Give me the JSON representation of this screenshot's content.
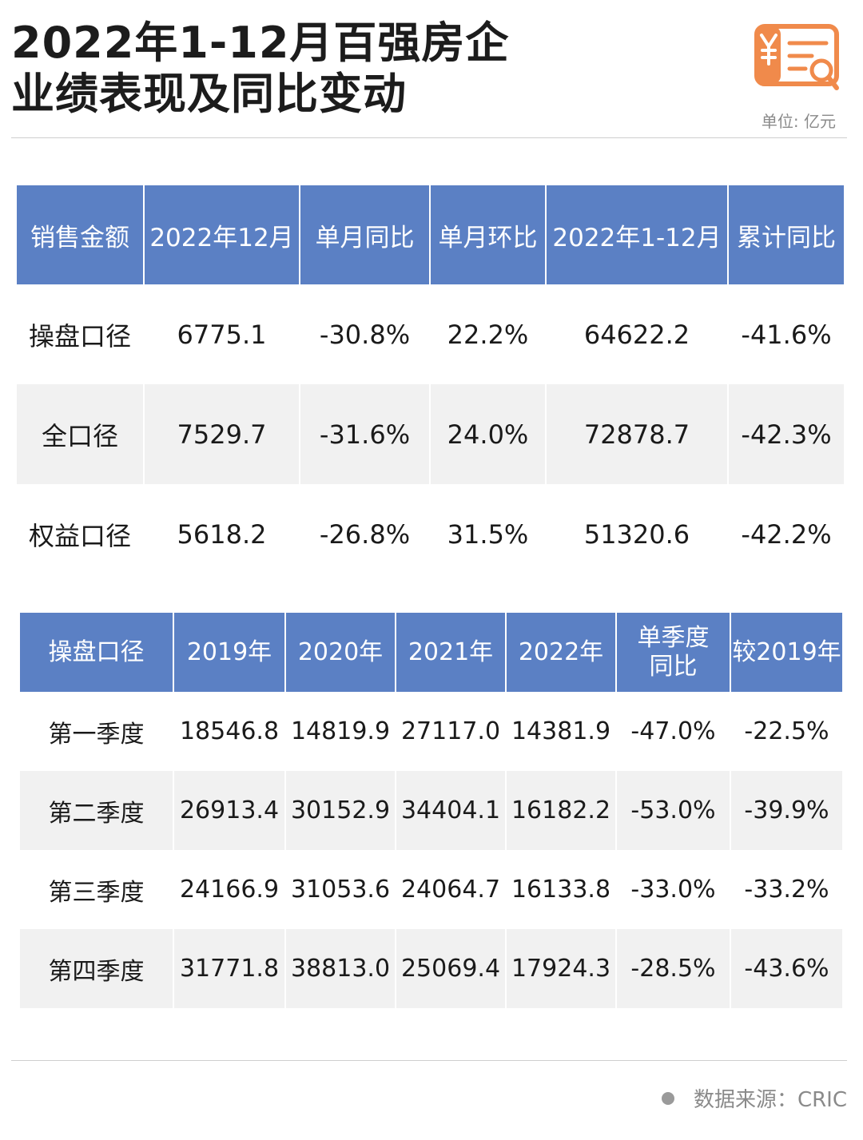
{
  "header": {
    "title_line1": "2022年1-12月百强房企",
    "title_line2": "业绩表现及同比变动",
    "unit": "单位: 亿元",
    "logo_icon": "yuan-report-search-icon",
    "logo_color": "#f08a4b"
  },
  "table1": {
    "headers": [
      "销售金额",
      "2022年12月",
      "单月同比",
      "单月环比",
      "2022年1-12月",
      "累计同比"
    ],
    "rows": [
      [
        "操盘口径",
        "6775.1",
        "-30.8%",
        "22.2%",
        "64622.2",
        "-41.6%"
      ],
      [
        "全口径",
        "7529.7",
        "-31.6%",
        "24.0%",
        "72878.7",
        "-42.3%"
      ],
      [
        "权益口径",
        "5618.2",
        "-26.8%",
        "31.5%",
        "51320.6",
        "-42.2%"
      ]
    ]
  },
  "table2": {
    "headers": [
      "操盘口径",
      "2019年",
      "2020年",
      "2021年",
      "2022年",
      "单季度",
      "同比",
      "较2019年"
    ],
    "rows": [
      [
        "第一季度",
        "18546.8",
        "14819.9",
        "27117.0",
        "14381.9",
        "-47.0%",
        "-22.5%"
      ],
      [
        "第二季度",
        "26913.4",
        "30152.9",
        "34404.1",
        "16182.2",
        "-53.0%",
        "-39.9%"
      ],
      [
        "第三季度",
        "24166.9",
        "31053.6",
        "24064.7",
        "16133.8",
        "-33.0%",
        "-33.2%"
      ],
      [
        "第四季度",
        "31771.8",
        "38813.0",
        "25069.4",
        "17924.3",
        "-28.5%",
        "-43.6%"
      ]
    ]
  },
  "footer": {
    "source": "数据来源：CRIC"
  },
  "colors": {
    "header_bg": "#5b80c4",
    "alt_row_bg": "#f1f1f1"
  }
}
